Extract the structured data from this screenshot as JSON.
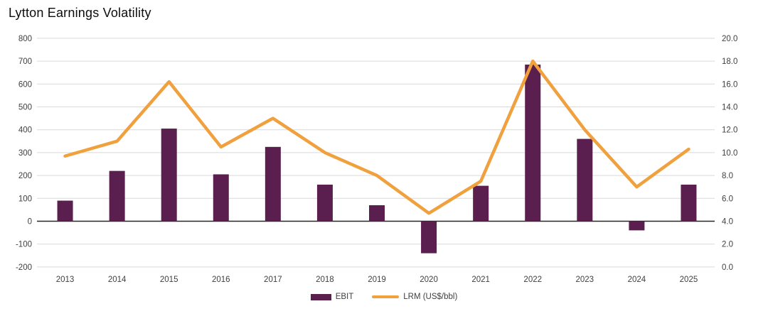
{
  "title": "Lytton Earnings Volatility",
  "colors": {
    "bar": "#5A1F4E",
    "line": "#F0A03C",
    "grid": "#D9D9D9",
    "zero_line": "#262626",
    "tick_text": "#404040",
    "background": "#FFFFFF"
  },
  "chart_data": {
    "type": "bar",
    "subtype": "combo-bar-line",
    "title": "Lytton Earnings Volatility",
    "categories": [
      "2013",
      "2014",
      "2015",
      "2016",
      "2017",
      "2018",
      "2019",
      "2020",
      "2021",
      "2022",
      "2023",
      "2024",
      "2025"
    ],
    "series": [
      {
        "name": "EBIT",
        "type": "bar",
        "axis": "left",
        "values": [
          90,
          220,
          405,
          205,
          325,
          160,
          70,
          -140,
          155,
          685,
          360,
          -40,
          160
        ]
      },
      {
        "name": "LRM (US$/bbl)",
        "type": "line",
        "axis": "right",
        "values": [
          9.7,
          11.0,
          16.2,
          10.5,
          13.0,
          10.0,
          8.0,
          4.7,
          7.5,
          18.0,
          12.0,
          7.0,
          10.3
        ]
      }
    ],
    "left_axis": {
      "min": -200,
      "max": 800,
      "step": 100,
      "tick_labels": [
        "-200",
        "-100",
        "0",
        "100",
        "200",
        "300",
        "400",
        "500",
        "600",
        "700",
        "800"
      ]
    },
    "right_axis": {
      "min": 0.0,
      "max": 20.0,
      "step": 2.0,
      "tick_labels": [
        "0.0",
        "2.0",
        "4.0",
        "6.0",
        "8.0",
        "10.0",
        "12.0",
        "14.0",
        "16.0",
        "18.0",
        "20.0"
      ]
    },
    "grid": true,
    "legend_position": "bottom",
    "legend": {
      "items": [
        {
          "label": "EBIT",
          "swatch": "bar"
        },
        {
          "label": "LRM (US$/bbl)",
          "swatch": "line"
        }
      ]
    }
  }
}
